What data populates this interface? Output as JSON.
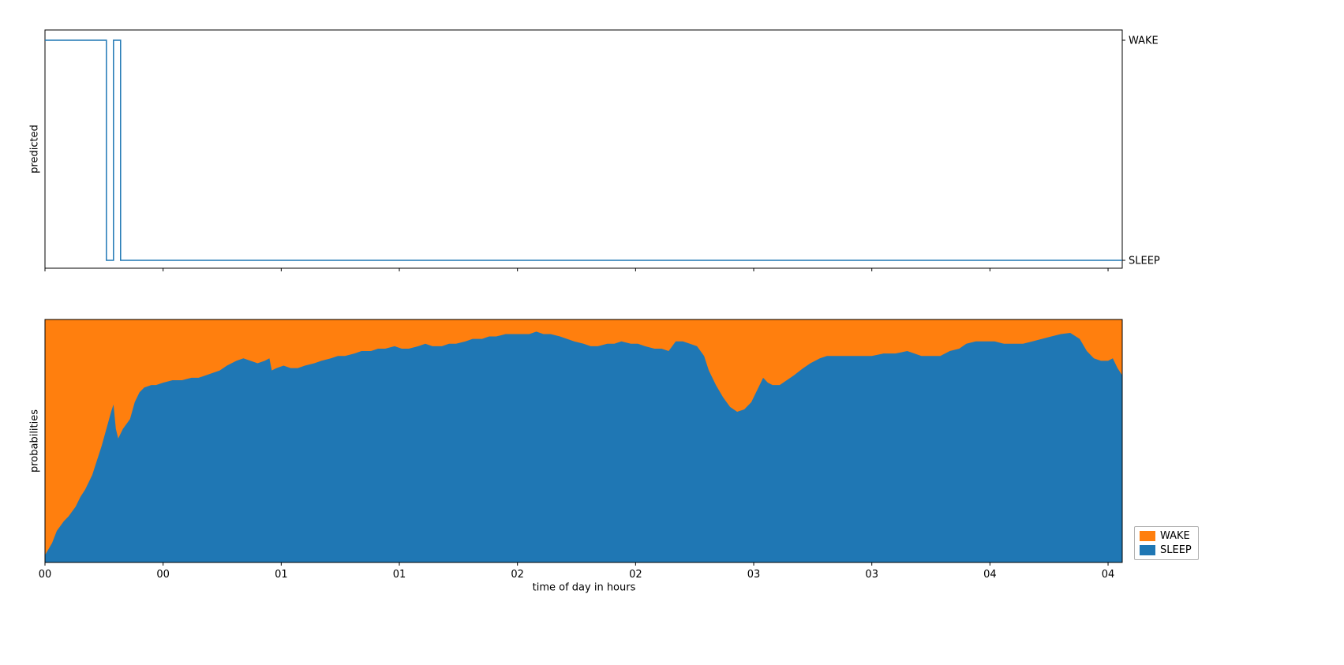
{
  "figure": {
    "background": "#ffffff"
  },
  "legend": {
    "position": "lower right, outside axes",
    "items": [
      {
        "label": "WAKE",
        "color": "#ff7f0e"
      },
      {
        "label": "SLEEP",
        "color": "#1f77b4"
      }
    ]
  },
  "chart_data": [
    {
      "type": "line",
      "subplot": "top",
      "title": "",
      "ylabel": "predicted",
      "ytick_labels": [
        "SLEEP",
        "WAKE"
      ],
      "ytick_side": "right",
      "line_color": "#1f77b4",
      "line_style": "step",
      "x_range_hours": [
        0,
        4.56
      ],
      "segments": [
        {
          "state": "WAKE",
          "from": 0.0,
          "to": 0.26
        },
        {
          "state": "SLEEP",
          "from": 0.26,
          "to": 0.29
        },
        {
          "state": "WAKE",
          "from": 0.29,
          "to": 0.32
        },
        {
          "state": "SLEEP",
          "from": 0.32,
          "to": 4.56
        }
      ]
    },
    {
      "type": "area",
      "subplot": "bottom",
      "title": "",
      "ylabel": "probabilities",
      "xlabel": "time of day in hours",
      "stacked": true,
      "stack_total": 1.0,
      "ylim": [
        0,
        1
      ],
      "x_range_hours": [
        0,
        4.56
      ],
      "xticks": {
        "positions": [
          0,
          0.5,
          1.0,
          1.5,
          2.0,
          2.5,
          3.0,
          3.5,
          4.0,
          4.5
        ],
        "labels": [
          "00",
          "00",
          "01",
          "01",
          "02",
          "02",
          "03",
          "03",
          "04",
          "04"
        ]
      },
      "x_hours": [
        0.0,
        0.03,
        0.05,
        0.08,
        0.1,
        0.13,
        0.15,
        0.17,
        0.2,
        0.22,
        0.24,
        0.26,
        0.28,
        0.29,
        0.3,
        0.31,
        0.33,
        0.36,
        0.38,
        0.4,
        0.42,
        0.45,
        0.47,
        0.5,
        0.54,
        0.58,
        0.62,
        0.65,
        0.68,
        0.71,
        0.74,
        0.77,
        0.81,
        0.84,
        0.87,
        0.9,
        0.93,
        0.95,
        0.96,
        0.98,
        1.01,
        1.04,
        1.07,
        1.1,
        1.14,
        1.17,
        1.21,
        1.24,
        1.27,
        1.31,
        1.34,
        1.38,
        1.41,
        1.44,
        1.48,
        1.51,
        1.54,
        1.58,
        1.61,
        1.64,
        1.68,
        1.71,
        1.74,
        1.78,
        1.81,
        1.85,
        1.88,
        1.91,
        1.95,
        1.98,
        2.01,
        2.05,
        2.08,
        2.11,
        2.14,
        2.18,
        2.21,
        2.24,
        2.28,
        2.31,
        2.34,
        2.38,
        2.41,
        2.44,
        2.48,
        2.51,
        2.54,
        2.58,
        2.61,
        2.64,
        2.67,
        2.7,
        2.73,
        2.76,
        2.79,
        2.81,
        2.84,
        2.87,
        2.9,
        2.93,
        2.96,
        2.99,
        3.02,
        3.04,
        3.06,
        3.08,
        3.11,
        3.14,
        3.17,
        3.21,
        3.24,
        3.28,
        3.31,
        3.35,
        3.4,
        3.45,
        3.5,
        3.55,
        3.6,
        3.65,
        3.68,
        3.71,
        3.75,
        3.79,
        3.83,
        3.87,
        3.9,
        3.94,
        3.98,
        4.02,
        4.06,
        4.1,
        4.14,
        4.18,
        4.22,
        4.26,
        4.3,
        4.34,
        4.38,
        4.41,
        4.44,
        4.47,
        4.5,
        4.52,
        4.54,
        4.56
      ],
      "series": [
        {
          "name": "SLEEP",
          "color": "#1f77b4",
          "values": [
            0.03,
            0.08,
            0.13,
            0.17,
            0.19,
            0.23,
            0.27,
            0.3,
            0.36,
            0.42,
            0.48,
            0.55,
            0.62,
            0.65,
            0.55,
            0.51,
            0.55,
            0.59,
            0.66,
            0.7,
            0.72,
            0.73,
            0.73,
            0.74,
            0.75,
            0.75,
            0.76,
            0.76,
            0.77,
            0.78,
            0.79,
            0.81,
            0.83,
            0.84,
            0.83,
            0.82,
            0.83,
            0.84,
            0.79,
            0.8,
            0.81,
            0.8,
            0.8,
            0.81,
            0.82,
            0.83,
            0.84,
            0.85,
            0.85,
            0.86,
            0.87,
            0.87,
            0.88,
            0.88,
            0.89,
            0.88,
            0.88,
            0.89,
            0.9,
            0.89,
            0.89,
            0.9,
            0.9,
            0.91,
            0.92,
            0.92,
            0.93,
            0.93,
            0.94,
            0.94,
            0.94,
            0.94,
            0.95,
            0.94,
            0.94,
            0.93,
            0.92,
            0.91,
            0.9,
            0.89,
            0.89,
            0.9,
            0.9,
            0.91,
            0.9,
            0.9,
            0.89,
            0.88,
            0.88,
            0.87,
            0.91,
            0.91,
            0.9,
            0.89,
            0.85,
            0.79,
            0.73,
            0.68,
            0.64,
            0.62,
            0.63,
            0.66,
            0.72,
            0.76,
            0.74,
            0.73,
            0.73,
            0.75,
            0.77,
            0.8,
            0.82,
            0.84,
            0.85,
            0.85,
            0.85,
            0.85,
            0.85,
            0.86,
            0.86,
            0.87,
            0.86,
            0.85,
            0.85,
            0.85,
            0.87,
            0.88,
            0.9,
            0.91,
            0.91,
            0.91,
            0.9,
            0.9,
            0.9,
            0.91,
            0.92,
            0.93,
            0.94,
            0.945,
            0.92,
            0.87,
            0.84,
            0.83,
            0.83,
            0.84,
            0.8,
            0.77
          ]
        },
        {
          "name": "WAKE",
          "color": "#ff7f0e",
          "values": "remainder_to_1"
        }
      ]
    }
  ]
}
